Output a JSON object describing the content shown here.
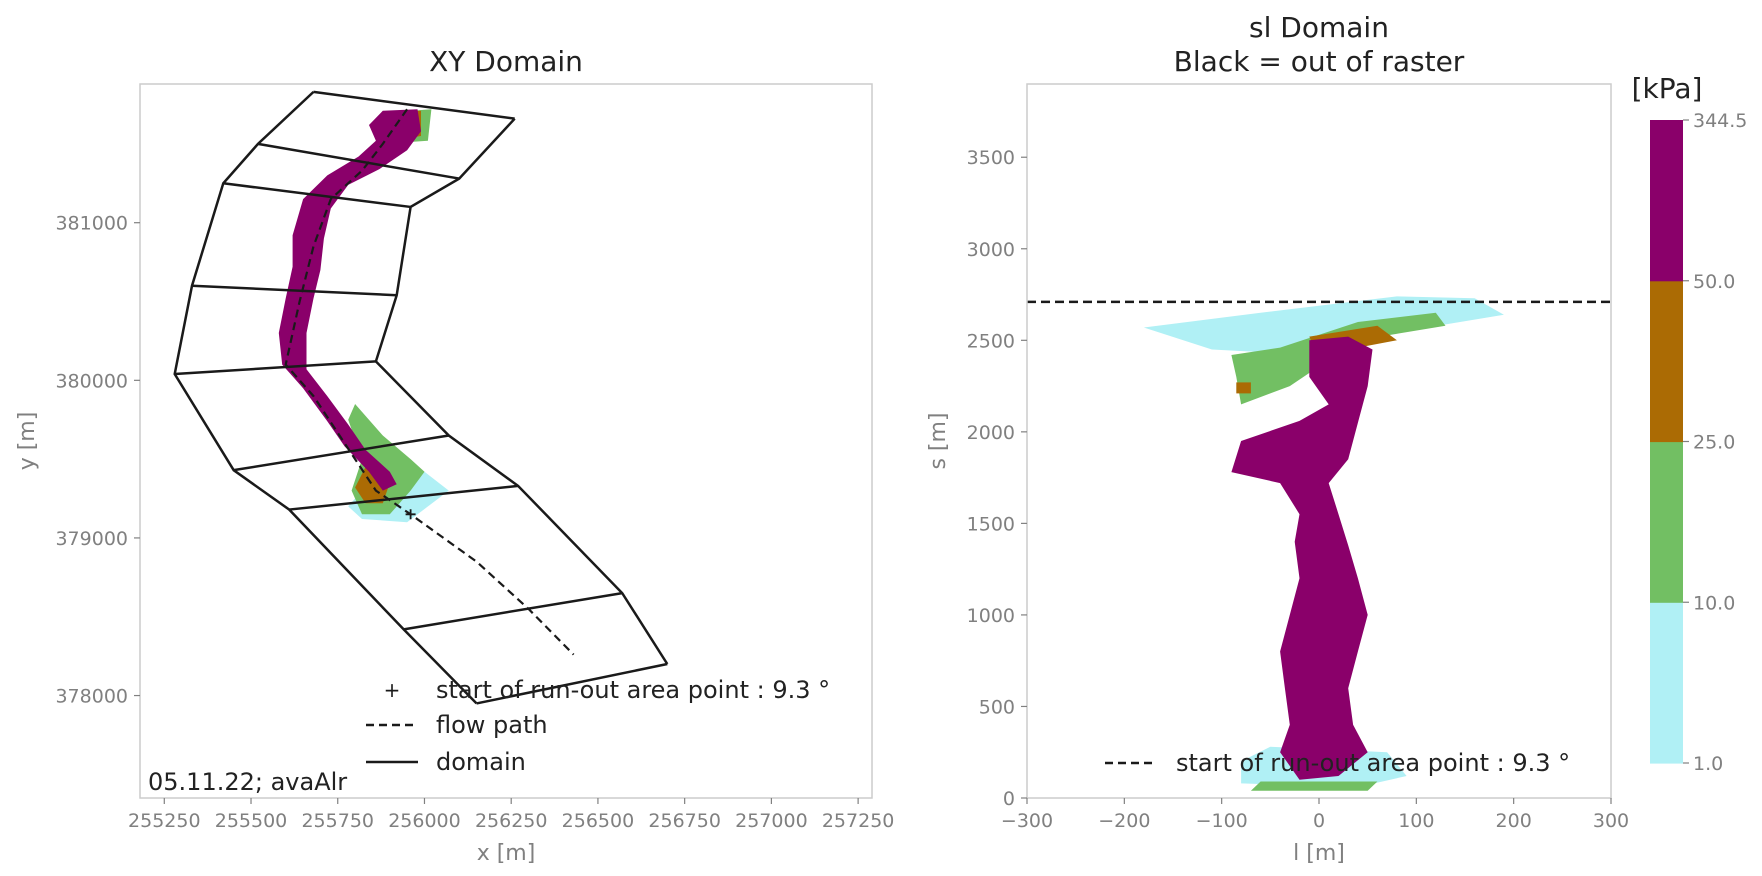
{
  "colors": {
    "c1": "#b0f0f5",
    "c2": "#72bf63",
    "c3": "#ab6b04",
    "c4": "#8a006a",
    "line": "#1a1a1a"
  },
  "chart_data": [
    {
      "type": "area",
      "title": "XY Domain",
      "xlabel": "x [m]",
      "ylabel": "y [m]",
      "xlim": [
        255180,
        257290
      ],
      "ylim": [
        377350,
        381880
      ],
      "xticks": [
        255250,
        255500,
        255750,
        256000,
        256250,
        256500,
        256750,
        257000,
        257250
      ],
      "yticks": [
        378000,
        379000,
        380000,
        381000
      ],
      "annotation": "05.11.22; avaAlr",
      "legend": {
        "placement": "lower-right",
        "entries": [
          "start of run-out area point : 9.3 °",
          "flow path",
          "domain"
        ]
      },
      "start_point": {
        "x": 255960,
        "y": 379150
      },
      "flow_path": [
        [
          255950,
          381720
        ],
        [
          255880,
          381500
        ],
        [
          255820,
          381330
        ],
        [
          255730,
          381150
        ],
        [
          255680,
          380850
        ],
        [
          255640,
          380500
        ],
        [
          255600,
          380100
        ],
        [
          255680,
          379900
        ],
        [
          255740,
          379700
        ],
        [
          255800,
          379500
        ],
        [
          255860,
          379300
        ],
        [
          255960,
          379150
        ],
        [
          256150,
          378850
        ],
        [
          256300,
          378550
        ],
        [
          256430,
          378260
        ]
      ],
      "domain_left": [
        [
          255680,
          381830
        ],
        [
          255520,
          381500
        ],
        [
          255420,
          381250
        ],
        [
          255330,
          380600
        ],
        [
          255280,
          380040
        ],
        [
          255450,
          379430
        ],
        [
          255610,
          379180
        ],
        [
          255940,
          378420
        ],
        [
          256150,
          377950
        ]
      ],
      "domain_right": [
        [
          256260,
          381660
        ],
        [
          256100,
          381280
        ],
        [
          255960,
          381100
        ],
        [
          255920,
          380540
        ],
        [
          255860,
          380120
        ],
        [
          256070,
          379650
        ],
        [
          256270,
          379330
        ],
        [
          256570,
          378650
        ],
        [
          256700,
          378200
        ]
      ],
      "pressure_field": {
        "levels": [
          1.0,
          10.0,
          25.0,
          50.0
        ],
        "bands": [
          {
            "level": 1.0,
            "polygon": [
              [
                255820,
                379300
              ],
              [
                256000,
                379420
              ],
              [
                256070,
                379300
              ],
              [
                255950,
                379100
              ],
              [
                255820,
                379120
              ],
              [
                255780,
                379200
              ]
            ]
          },
          {
            "level": 10.0,
            "polygon": [
              [
                255900,
                381700
              ],
              [
                256020,
                381720
              ],
              [
                256010,
                381520
              ],
              [
                255880,
                381500
              ]
            ]
          },
          {
            "level": 10.0,
            "polygon": [
              [
                255800,
                379850
              ],
              [
                255880,
                379650
              ],
              [
                255960,
                379500
              ],
              [
                256000,
                379420
              ],
              [
                255960,
                379300
              ],
              [
                255900,
                379150
              ],
              [
                255820,
                379150
              ],
              [
                255790,
                379300
              ],
              [
                255820,
                379500
              ],
              [
                255780,
                379750
              ]
            ]
          },
          {
            "level": 25.0,
            "polygon": [
              [
                255830,
                379450
              ],
              [
                255900,
                379350
              ],
              [
                255880,
                379220
              ],
              [
                255830,
                379220
              ],
              [
                255800,
                379320
              ]
            ]
          },
          {
            "level": 25.0,
            "polygon": [
              [
                255900,
                381700
              ],
              [
                255990,
                381710
              ],
              [
                255990,
                381550
              ],
              [
                255900,
                381520
              ]
            ]
          },
          {
            "level": 50.0,
            "polygon": [
              [
                255880,
                381710
              ],
              [
                255980,
                381720
              ],
              [
                255990,
                381580
              ],
              [
                255950,
                381460
              ],
              [
                255870,
                381340
              ],
              [
                255780,
                381240
              ],
              [
                255730,
                381090
              ],
              [
                255710,
                380900
              ],
              [
                255700,
                380700
              ],
              [
                255680,
                380520
              ],
              [
                255660,
                380300
              ],
              [
                255660,
                380070
              ],
              [
                255720,
                379900
              ],
              [
                255780,
                379720
              ],
              [
                255830,
                379560
              ],
              [
                255900,
                379420
              ],
              [
                255920,
                379340
              ],
              [
                255880,
                379300
              ],
              [
                255840,
                379420
              ],
              [
                255770,
                379580
              ],
              [
                255720,
                379740
              ],
              [
                255650,
                379950
              ],
              [
                255590,
                380100
              ],
              [
                255580,
                380300
              ],
              [
                255600,
                380520
              ],
              [
                255620,
                380720
              ],
              [
                255620,
                380920
              ],
              [
                255650,
                381150
              ],
              [
                255720,
                381300
              ],
              [
                255810,
                381420
              ],
              [
                255860,
                381520
              ],
              [
                255840,
                381620
              ]
            ]
          }
        ]
      }
    },
    {
      "type": "area",
      "title": "sl Domain",
      "subtitle": "Black = out of raster",
      "xlabel": "l [m]",
      "ylabel": "s [m]",
      "xlim": [
        -300,
        300
      ],
      "ylim": [
        0,
        3900
      ],
      "xticks": [
        -300,
        -200,
        -100,
        0,
        100,
        200,
        300
      ],
      "yticks": [
        0,
        500,
        1000,
        1500,
        2000,
        2500,
        3000,
        3500
      ],
      "runout_line_s": 2710,
      "legend": {
        "placement": "lower-right",
        "entries": [
          "start of run-out area point : 9.3 °"
        ]
      },
      "pressure_field": {
        "levels": [
          1.0,
          10.0,
          25.0,
          50.0
        ],
        "bands": [
          {
            "level": 1.0,
            "polygon": [
              [
                -180,
                2570
              ],
              [
                -60,
                2650
              ],
              [
                80,
                2740
              ],
              [
                160,
                2730
              ],
              [
                190,
                2640
              ],
              [
                100,
                2560
              ],
              [
                -40,
                2430
              ],
              [
                -110,
                2450
              ]
            ]
          },
          {
            "level": 1.0,
            "polygon": [
              [
                -80,
                80
              ],
              [
                40,
                60
              ],
              [
                90,
                120
              ],
              [
                70,
                250
              ],
              [
                -50,
                280
              ],
              [
                -80,
                200
              ]
            ]
          },
          {
            "level": 10.0,
            "polygon": [
              [
                -90,
                2420
              ],
              [
                -40,
                2460
              ],
              [
                40,
                2600
              ],
              [
                120,
                2650
              ],
              [
                130,
                2580
              ],
              [
                40,
                2500
              ],
              [
                -30,
                2250
              ],
              [
                -80,
                2150
              ],
              [
                -85,
                2300
              ]
            ]
          },
          {
            "level": 10.0,
            "polygon": [
              [
                -70,
                40
              ],
              [
                50,
                40
              ],
              [
                60,
                90
              ],
              [
                -60,
                90
              ]
            ]
          },
          {
            "level": 25.0,
            "polygon": [
              [
                -10,
                2520
              ],
              [
                60,
                2580
              ],
              [
                80,
                2500
              ],
              [
                40,
                2460
              ],
              [
                -5,
                2460
              ]
            ]
          },
          {
            "level": 25.0,
            "polygon": [
              [
                -85,
                2270
              ],
              [
                -70,
                2270
              ],
              [
                -70,
                2210
              ],
              [
                -85,
                2210
              ]
            ]
          },
          {
            "level": 50.0,
            "polygon": [
              [
                -10,
                2500
              ],
              [
                30,
                2520
              ],
              [
                55,
                2450
              ],
              [
                50,
                2250
              ],
              [
                40,
                2050
              ],
              [
                30,
                1850
              ],
              [
                10,
                1720
              ],
              [
                20,
                1550
              ],
              [
                30,
                1380
              ],
              [
                40,
                1200
              ],
              [
                50,
                1000
              ],
              [
                40,
                800
              ],
              [
                30,
                600
              ],
              [
                35,
                400
              ],
              [
                50,
                250
              ],
              [
                20,
                120
              ],
              [
                -20,
                100
              ],
              [
                -40,
                250
              ],
              [
                -30,
                400
              ],
              [
                -35,
                600
              ],
              [
                -40,
                800
              ],
              [
                -30,
                1000
              ],
              [
                -20,
                1200
              ],
              [
                -25,
                1400
              ],
              [
                -20,
                1550
              ],
              [
                -40,
                1720
              ],
              [
                -90,
                1780
              ],
              [
                -80,
                1950
              ],
              [
                -20,
                2060
              ],
              [
                10,
                2150
              ],
              [
                -10,
                2300
              ]
            ]
          }
        ]
      }
    },
    {
      "type": "heatmap",
      "colorbar_label": "[kPa]",
      "bounds": [
        1.0,
        10.0,
        25.0,
        50.0,
        344.5
      ],
      "tick_labels": [
        "1.0",
        "10.0",
        "25.0",
        "50.0",
        "344.5"
      ]
    }
  ]
}
